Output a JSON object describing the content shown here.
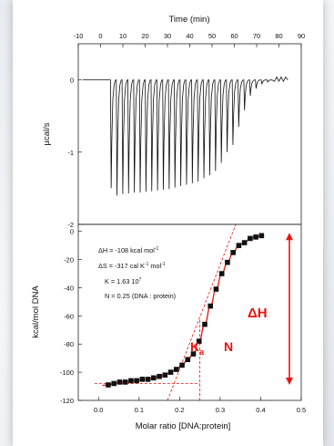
{
  "chart_data": [
    {
      "type": "line",
      "panel": "raw-thermogram",
      "title": "Time (min)",
      "xlabel": "Time (min)",
      "ylabel": "µcal/s",
      "xlim": [
        -10,
        90
      ],
      "ylim": [
        -2,
        0.5
      ],
      "x_ticks": [
        -10,
        0,
        10,
        20,
        30,
        40,
        50,
        60,
        70,
        80,
        90
      ],
      "y_ticks": [
        0,
        -1,
        -2
      ],
      "tick_labels_x": [
        "-10",
        "0",
        "10",
        "20",
        "30",
        "40",
        "50",
        "60",
        "70",
        "80",
        "90"
      ],
      "tick_labels_y": [
        "0",
        "-1",
        "-2"
      ],
      "baseline": 0,
      "series": [
        {
          "injection_times": [
            4.6,
            7.2,
            9.8,
            12.4,
            15.0,
            17.6,
            20.2,
            22.8,
            25.4,
            28.0,
            30.6,
            33.2,
            35.8,
            38.4,
            41.0,
            43.6,
            46.2,
            48.8,
            51.4,
            54.0,
            56.6,
            59.2,
            61.8,
            64.4,
            67.0,
            69.6,
            72.2,
            74.8
          ],
          "peak_heights": [
            -1.5,
            -1.6,
            -1.58,
            -1.57,
            -1.56,
            -1.56,
            -1.55,
            -1.54,
            -1.53,
            -1.52,
            -1.51,
            -1.49,
            -1.47,
            -1.45,
            -1.43,
            -1.41,
            -1.36,
            -1.32,
            -1.26,
            -1.15,
            -1.0,
            -0.9,
            -0.65,
            -0.42,
            -0.22,
            -0.12,
            -0.06,
            -0.03
          ]
        }
      ]
    },
    {
      "type": "scatter",
      "panel": "binding-isotherm",
      "xlabel": "Molar ratio [DNA:protein]",
      "ylabel": "kcal/mol DNA",
      "xlim": [
        -0.05,
        0.5
      ],
      "ylim": [
        -120,
        5
      ],
      "x_ticks": [
        0.0,
        0.1,
        0.2,
        0.3,
        0.4,
        0.5
      ],
      "y_ticks": [
        0,
        -20,
        -40,
        -60,
        -80,
        -100,
        -120
      ],
      "tick_labels_x": [
        "0.0",
        "0.1",
        "0.2",
        "0.3",
        "0.4",
        "0.5"
      ],
      "tick_labels_y": [
        "0",
        "-20",
        "-40",
        "-60",
        "-80",
        "-100",
        "-120"
      ],
      "grid": false,
      "series": [
        {
          "x": [
            0.024,
            0.038,
            0.052,
            0.066,
            0.08,
            0.094,
            0.108,
            0.122,
            0.136,
            0.15,
            0.164,
            0.178,
            0.192,
            0.206,
            0.22,
            0.234,
            0.248,
            0.262,
            0.276,
            0.29,
            0.304,
            0.318,
            0.332,
            0.346,
            0.36,
            0.374,
            0.388,
            0.402
          ],
          "y": [
            -109,
            -108,
            -107,
            -107,
            -106,
            -106,
            -105,
            -105,
            -104,
            -103,
            -102,
            -100,
            -98,
            -95,
            -91,
            -87,
            -78,
            -66,
            -53,
            -41,
            -30,
            -22,
            -15,
            -10,
            -8,
            -5,
            -4,
            -3
          ]
        }
      ],
      "fit_curve_color": "#e8150e",
      "marker_color": "#111111",
      "annotations": {
        "params": [
          {
            "label": "ΔH = -108 kcal mol",
            "sup": "-1"
          },
          {
            "label": "ΔS = -317 cal K",
            "sup": "-1",
            "after": " mol",
            "sup2": "-1"
          },
          {
            "label": "K = 1.63 10",
            "sup": "7"
          },
          {
            "label": "N = 0.25 (DNA : protein)"
          }
        ],
        "Ka_main": "K",
        "Ka_sub": "a",
        "N": "N",
        "dH": "ΔH",
        "N_value": 0.25,
        "dH_top": -1,
        "dH_bottom": -109
      }
    }
  ]
}
